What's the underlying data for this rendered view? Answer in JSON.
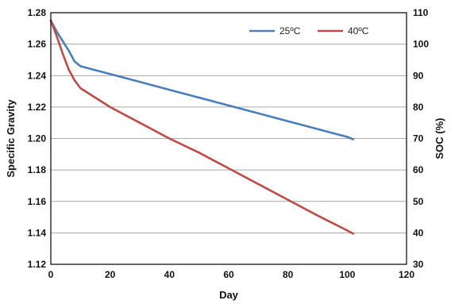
{
  "chart_data": {
    "type": "line",
    "xlabel": "Day",
    "ylabel": "Specific Gravity",
    "y2label": "SOC (%)",
    "xlim": [
      0,
      120
    ],
    "ylim": [
      1.12,
      1.28
    ],
    "y2lim": [
      30,
      110
    ],
    "x_ticks": [
      "0",
      "20",
      "40",
      "60",
      "80",
      "100",
      "120"
    ],
    "y_ticks": [
      "1.12",
      "1.14",
      "1.16",
      "1.18",
      "1.20",
      "1.22",
      "1.24",
      "1.26",
      "1.28"
    ],
    "y2_ticks": [
      "30",
      "40",
      "50",
      "60",
      "70",
      "80",
      "90",
      "100",
      "110"
    ],
    "grid": "horizontal",
    "legend_position": "top-right",
    "series": [
      {
        "name": "25ºC",
        "color": "#4a7ebb",
        "x": [
          0,
          2,
          4,
          6,
          8,
          10,
          15,
          20,
          30,
          40,
          50,
          60,
          70,
          80,
          90,
          100,
          102
        ],
        "y": [
          1.275,
          1.268,
          1.262,
          1.256,
          1.249,
          1.246,
          1.2435,
          1.241,
          1.236,
          1.231,
          1.226,
          1.221,
          1.216,
          1.211,
          1.206,
          1.201,
          1.1995
        ]
      },
      {
        "name": "40ºC",
        "color": "#be4b48",
        "x": [
          0,
          2,
          4,
          6,
          8,
          10,
          15,
          20,
          30,
          40,
          50,
          60,
          70,
          80,
          90,
          100,
          102
        ],
        "y": [
          1.275,
          1.265,
          1.254,
          1.244,
          1.237,
          1.232,
          1.226,
          1.22,
          1.21,
          1.2,
          1.191,
          1.181,
          1.171,
          1.161,
          1.151,
          1.1415,
          1.1395
        ]
      }
    ]
  }
}
